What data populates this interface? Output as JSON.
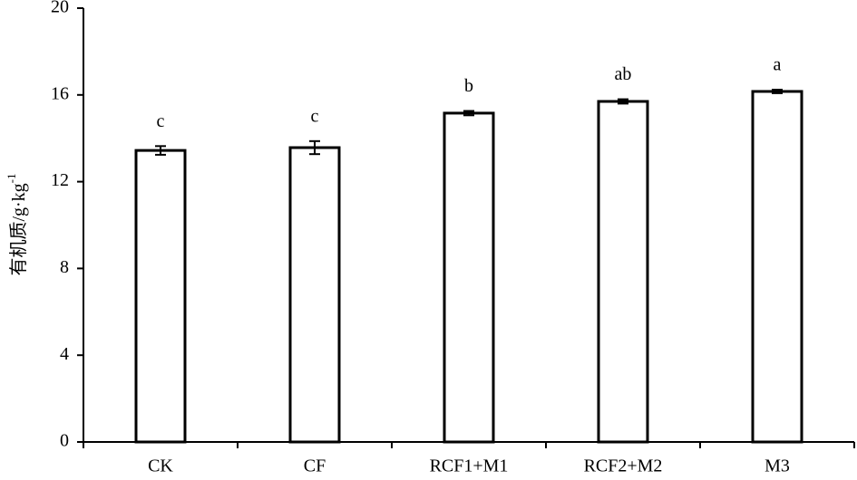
{
  "chart_data": {
    "type": "bar",
    "ylabel": "有机质/g·kg",
    "ylabel_superscript": "-1",
    "categories": [
      "CK",
      "CF",
      "RCF1+M1",
      "RCF2+M2",
      "M3"
    ],
    "values": [
      13.44,
      13.57,
      15.16,
      15.7,
      16.16
    ],
    "errors": [
      0.2,
      0.3,
      0.1,
      0.1,
      0.08
    ],
    "significance": [
      "c",
      "c",
      "b",
      "ab",
      "a"
    ],
    "color": "#ffffff",
    "edgecolor": "#000000",
    "ylim": [
      0,
      20
    ],
    "yticks": [
      0,
      4,
      8,
      12,
      16,
      20
    ],
    "grid": false
  }
}
